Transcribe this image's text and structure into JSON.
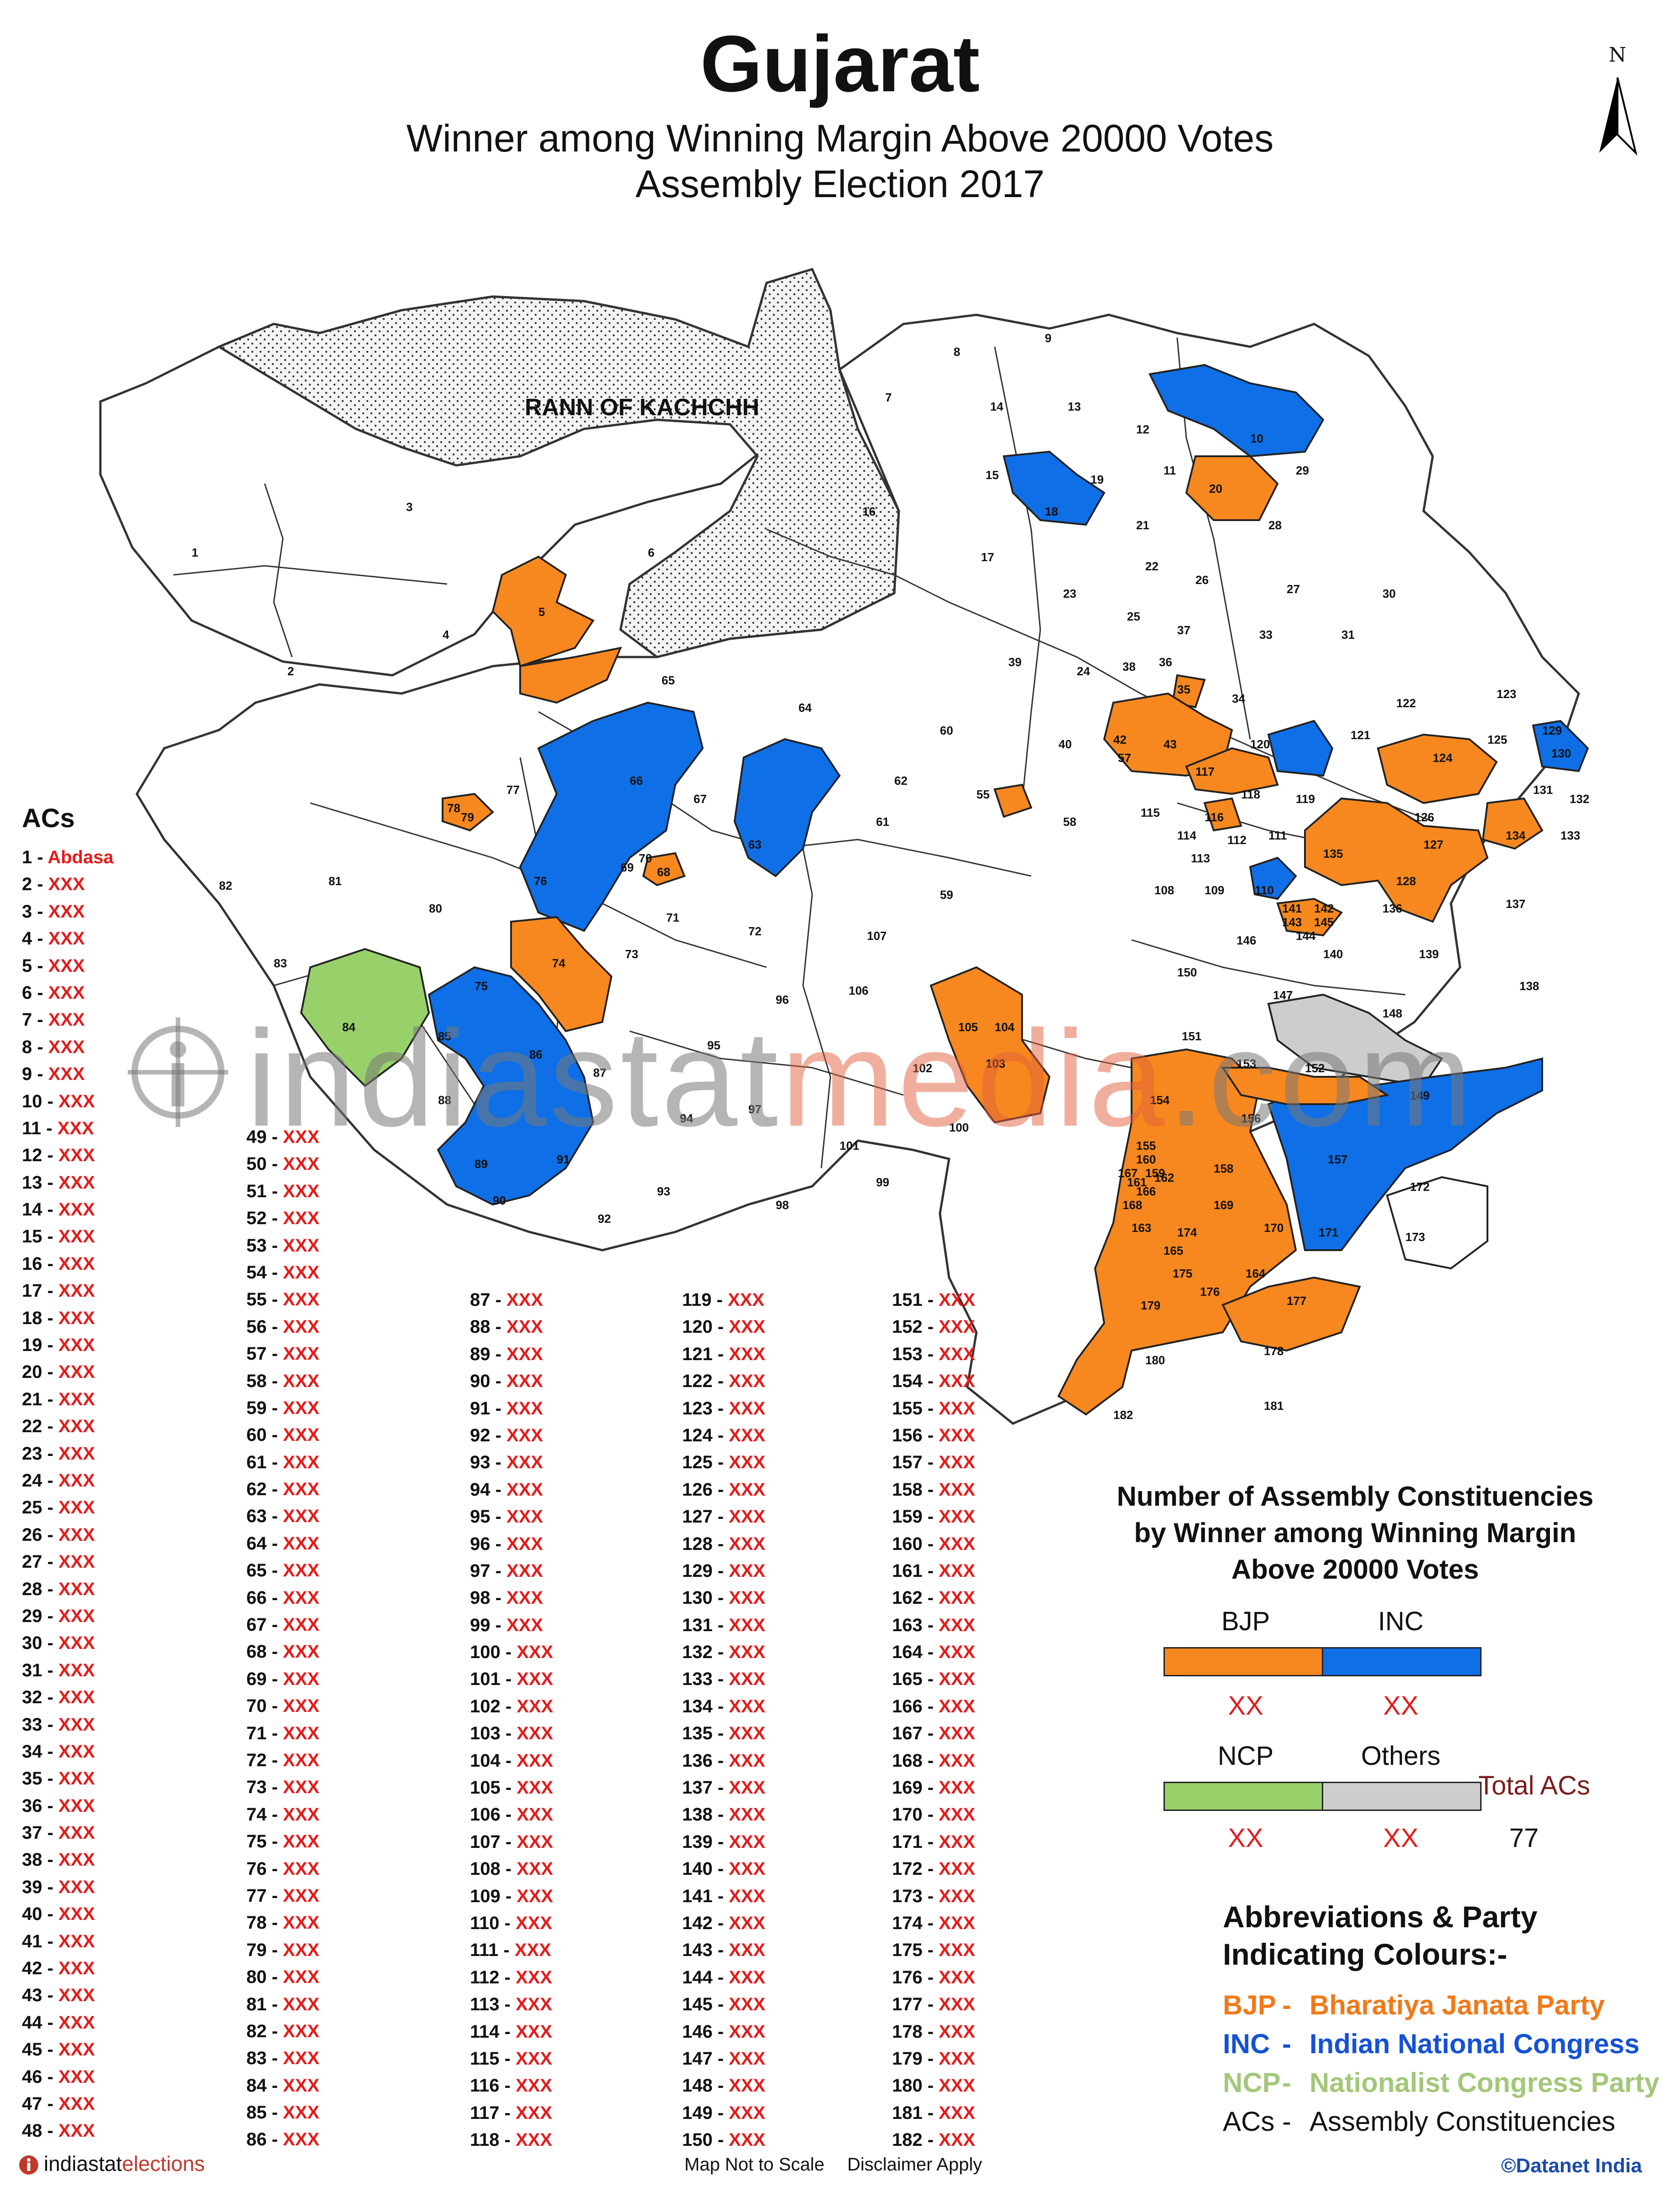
{
  "title": "Gujarat",
  "subtitle_1": "Winner among Winning Margin Above 20000 Votes",
  "subtitle_2": "Assembly Election 2017",
  "north_label": "N",
  "map": {
    "region_label": "RANN OF KACHCHH",
    "colors": {
      "BJP": "#f7881f",
      "INC": "#0f6fe6",
      "NCP": "#98d16a",
      "Others": "#cdcdcd",
      "none": "#ffffff",
      "rann": "#e3e3e3"
    }
  },
  "watermark": {
    "text_1": "indiastat",
    "text_2": "media",
    "text_3": ".com"
  },
  "acs": {
    "heading": "ACs",
    "items": [
      {
        "num": "1",
        "name": "Abdasa"
      },
      {
        "num": "2",
        "name": "XXX"
      },
      {
        "num": "3",
        "name": "XXX"
      },
      {
        "num": "4",
        "name": "XXX"
      },
      {
        "num": "5",
        "name": "XXX"
      },
      {
        "num": "6",
        "name": "XXX"
      },
      {
        "num": "7",
        "name": "XXX"
      },
      {
        "num": "8",
        "name": "XXX"
      },
      {
        "num": "9",
        "name": "XXX"
      },
      {
        "num": "10",
        "name": "XXX"
      },
      {
        "num": "11",
        "name": "XXX"
      },
      {
        "num": "12",
        "name": "XXX"
      },
      {
        "num": "13",
        "name": "XXX"
      },
      {
        "num": "14",
        "name": "XXX"
      },
      {
        "num": "15",
        "name": "XXX"
      },
      {
        "num": "16",
        "name": "XXX"
      },
      {
        "num": "17",
        "name": "XXX"
      },
      {
        "num": "18",
        "name": "XXX"
      },
      {
        "num": "19",
        "name": "XXX"
      },
      {
        "num": "20",
        "name": "XXX"
      },
      {
        "num": "21",
        "name": "XXX"
      },
      {
        "num": "22",
        "name": "XXX"
      },
      {
        "num": "23",
        "name": "XXX"
      },
      {
        "num": "24",
        "name": "XXX"
      },
      {
        "num": "25",
        "name": "XXX"
      },
      {
        "num": "26",
        "name": "XXX"
      },
      {
        "num": "27",
        "name": "XXX"
      },
      {
        "num": "28",
        "name": "XXX"
      },
      {
        "num": "29",
        "name": "XXX"
      },
      {
        "num": "30",
        "name": "XXX"
      },
      {
        "num": "31",
        "name": "XXX"
      },
      {
        "num": "32",
        "name": "XXX"
      },
      {
        "num": "33",
        "name": "XXX"
      },
      {
        "num": "34",
        "name": "XXX"
      },
      {
        "num": "35",
        "name": "XXX"
      },
      {
        "num": "36",
        "name": "XXX"
      },
      {
        "num": "37",
        "name": "XXX"
      },
      {
        "num": "38",
        "name": "XXX"
      },
      {
        "num": "39",
        "name": "XXX"
      },
      {
        "num": "40",
        "name": "XXX"
      },
      {
        "num": "41",
        "name": "XXX"
      },
      {
        "num": "42",
        "name": "XXX"
      },
      {
        "num": "43",
        "name": "XXX"
      },
      {
        "num": "44",
        "name": "XXX"
      },
      {
        "num": "45",
        "name": "XXX"
      },
      {
        "num": "46",
        "name": "XXX"
      },
      {
        "num": "47",
        "name": "XXX"
      },
      {
        "num": "48",
        "name": "XXX"
      },
      {
        "num": "49",
        "name": "XXX"
      },
      {
        "num": "50",
        "name": "XXX"
      },
      {
        "num": "51",
        "name": "XXX"
      },
      {
        "num": "52",
        "name": "XXX"
      },
      {
        "num": "53",
        "name": "XXX"
      },
      {
        "num": "54",
        "name": "XXX"
      },
      {
        "num": "55",
        "name": "XXX"
      },
      {
        "num": "56",
        "name": "XXX"
      },
      {
        "num": "57",
        "name": "XXX"
      },
      {
        "num": "58",
        "name": "XXX"
      },
      {
        "num": "59",
        "name": "XXX"
      },
      {
        "num": "60",
        "name": "XXX"
      },
      {
        "num": "61",
        "name": "XXX"
      },
      {
        "num": "62",
        "name": "XXX"
      },
      {
        "num": "63",
        "name": "XXX"
      },
      {
        "num": "64",
        "name": "XXX"
      },
      {
        "num": "65",
        "name": "XXX"
      },
      {
        "num": "66",
        "name": "XXX"
      },
      {
        "num": "67",
        "name": "XXX"
      },
      {
        "num": "68",
        "name": "XXX"
      },
      {
        "num": "69",
        "name": "XXX"
      },
      {
        "num": "70",
        "name": "XXX"
      },
      {
        "num": "71",
        "name": "XXX"
      },
      {
        "num": "72",
        "name": "XXX"
      },
      {
        "num": "73",
        "name": "XXX"
      },
      {
        "num": "74",
        "name": "XXX"
      },
      {
        "num": "75",
        "name": "XXX"
      },
      {
        "num": "76",
        "name": "XXX"
      },
      {
        "num": "77",
        "name": "XXX"
      },
      {
        "num": "78",
        "name": "XXX"
      },
      {
        "num": "79",
        "name": "XXX"
      },
      {
        "num": "80",
        "name": "XXX"
      },
      {
        "num": "81",
        "name": "XXX"
      },
      {
        "num": "82",
        "name": "XXX"
      },
      {
        "num": "83",
        "name": "XXX"
      },
      {
        "num": "84",
        "name": "XXX"
      },
      {
        "num": "85",
        "name": "XXX"
      },
      {
        "num": "86",
        "name": "XXX"
      },
      {
        "num": "87",
        "name": "XXX"
      },
      {
        "num": "88",
        "name": "XXX"
      },
      {
        "num": "89",
        "name": "XXX"
      },
      {
        "num": "90",
        "name": "XXX"
      },
      {
        "num": "91",
        "name": "XXX"
      },
      {
        "num": "92",
        "name": "XXX"
      },
      {
        "num": "93",
        "name": "XXX"
      },
      {
        "num": "94",
        "name": "XXX"
      },
      {
        "num": "95",
        "name": "XXX"
      },
      {
        "num": "96",
        "name": "XXX"
      },
      {
        "num": "97",
        "name": "XXX"
      },
      {
        "num": "98",
        "name": "XXX"
      },
      {
        "num": "99",
        "name": "XXX"
      },
      {
        "num": "100",
        "name": "XXX"
      },
      {
        "num": "101",
        "name": "XXX"
      },
      {
        "num": "102",
        "name": "XXX"
      },
      {
        "num": "103",
        "name": "XXX"
      },
      {
        "num": "104",
        "name": "XXX"
      },
      {
        "num": "105",
        "name": "XXX"
      },
      {
        "num": "106",
        "name": "XXX"
      },
      {
        "num": "107",
        "name": "XXX"
      },
      {
        "num": "108",
        "name": "XXX"
      },
      {
        "num": "109",
        "name": "XXX"
      },
      {
        "num": "110",
        "name": "XXX"
      },
      {
        "num": "111",
        "name": "XXX"
      },
      {
        "num": "112",
        "name": "XXX"
      },
      {
        "num": "113",
        "name": "XXX"
      },
      {
        "num": "114",
        "name": "XXX"
      },
      {
        "num": "115",
        "name": "XXX"
      },
      {
        "num": "116",
        "name": "XXX"
      },
      {
        "num": "117",
        "name": "XXX"
      },
      {
        "num": "118",
        "name": "XXX"
      },
      {
        "num": "119",
        "name": "XXX"
      },
      {
        "num": "120",
        "name": "XXX"
      },
      {
        "num": "121",
        "name": "XXX"
      },
      {
        "num": "122",
        "name": "XXX"
      },
      {
        "num": "123",
        "name": "XXX"
      },
      {
        "num": "124",
        "name": "XXX"
      },
      {
        "num": "125",
        "name": "XXX"
      },
      {
        "num": "126",
        "name": "XXX"
      },
      {
        "num": "127",
        "name": "XXX"
      },
      {
        "num": "128",
        "name": "XXX"
      },
      {
        "num": "129",
        "name": "XXX"
      },
      {
        "num": "130",
        "name": "XXX"
      },
      {
        "num": "131",
        "name": "XXX"
      },
      {
        "num": "132",
        "name": "XXX"
      },
      {
        "num": "133",
        "name": "XXX"
      },
      {
        "num": "134",
        "name": "XXX"
      },
      {
        "num": "135",
        "name": "XXX"
      },
      {
        "num": "136",
        "name": "XXX"
      },
      {
        "num": "137",
        "name": "XXX"
      },
      {
        "num": "138",
        "name": "XXX"
      },
      {
        "num": "139",
        "name": "XXX"
      },
      {
        "num": "140",
        "name": "XXX"
      },
      {
        "num": "141",
        "name": "XXX"
      },
      {
        "num": "142",
        "name": "XXX"
      },
      {
        "num": "143",
        "name": "XXX"
      },
      {
        "num": "144",
        "name": "XXX"
      },
      {
        "num": "145",
        "name": "XXX"
      },
      {
        "num": "146",
        "name": "XXX"
      },
      {
        "num": "147",
        "name": "XXX"
      },
      {
        "num": "148",
        "name": "XXX"
      },
      {
        "num": "149",
        "name": "XXX"
      },
      {
        "num": "150",
        "name": "XXX"
      },
      {
        "num": "151",
        "name": "XXX"
      },
      {
        "num": "152",
        "name": "XXX"
      },
      {
        "num": "153",
        "name": "XXX"
      },
      {
        "num": "154",
        "name": "XXX"
      },
      {
        "num": "155",
        "name": "XXX"
      },
      {
        "num": "156",
        "name": "XXX"
      },
      {
        "num": "157",
        "name": "XXX"
      },
      {
        "num": "158",
        "name": "XXX"
      },
      {
        "num": "159",
        "name": "XXX"
      },
      {
        "num": "160",
        "name": "XXX"
      },
      {
        "num": "161",
        "name": "XXX"
      },
      {
        "num": "162",
        "name": "XXX"
      },
      {
        "num": "163",
        "name": "XXX"
      },
      {
        "num": "164",
        "name": "XXX"
      },
      {
        "num": "165",
        "name": "XXX"
      },
      {
        "num": "166",
        "name": "XXX"
      },
      {
        "num": "167",
        "name": "XXX"
      },
      {
        "num": "168",
        "name": "XXX"
      },
      {
        "num": "169",
        "name": "XXX"
      },
      {
        "num": "170",
        "name": "XXX"
      },
      {
        "num": "171",
        "name": "XXX"
      },
      {
        "num": "172",
        "name": "XXX"
      },
      {
        "num": "173",
        "name": "XXX"
      },
      {
        "num": "174",
        "name": "XXX"
      },
      {
        "num": "175",
        "name": "XXX"
      },
      {
        "num": "176",
        "name": "XXX"
      },
      {
        "num": "177",
        "name": "XXX"
      },
      {
        "num": "178",
        "name": "XXX"
      },
      {
        "num": "179",
        "name": "XXX"
      },
      {
        "num": "180",
        "name": "XXX"
      },
      {
        "num": "181",
        "name": "XXX"
      },
      {
        "num": "182",
        "name": "XXX"
      }
    ]
  },
  "legend": {
    "title_1": "Number of Assembly Constituencies",
    "title_2": "by Winner among Winning Margin",
    "title_3": "Above 20000 Votes",
    "parties": [
      {
        "name": "BJP",
        "count": "XX",
        "color": "#f7881f"
      },
      {
        "name": "INC",
        "count": "XX",
        "color": "#0f6fe6"
      },
      {
        "name": "NCP",
        "count": "XX",
        "color": "#98d16a"
      },
      {
        "name": "Others",
        "count": "XX",
        "color": "#cdcdcd"
      }
    ],
    "total_label": "Total ACs",
    "total_value": "77"
  },
  "abbreviations": {
    "heading_1": "Abbreviations & Party",
    "heading_2": "Indicating Colours:-",
    "items": [
      {
        "abbr": "BJP",
        "sep": "-",
        "full": "Bharatiya Janata Party",
        "color": "#f07a1a"
      },
      {
        "abbr": "INC",
        "sep": "-",
        "full": "Indian National Congress",
        "color": "#1452d6"
      },
      {
        "abbr": "NCP",
        "sep": "-",
        "full": "Nationalist Congress Party",
        "color": "#a3c77a"
      },
      {
        "abbr": "ACs",
        "sep": "-",
        "full": "Assembly Constituencies",
        "color": "#111111"
      }
    ]
  },
  "footer": {
    "brand_1": "indiastat",
    "brand_2": "elections",
    "scale_note": "Map Not to Scale",
    "disclaimer": "Disclaimer Apply",
    "copyright": "©Datanet India"
  }
}
